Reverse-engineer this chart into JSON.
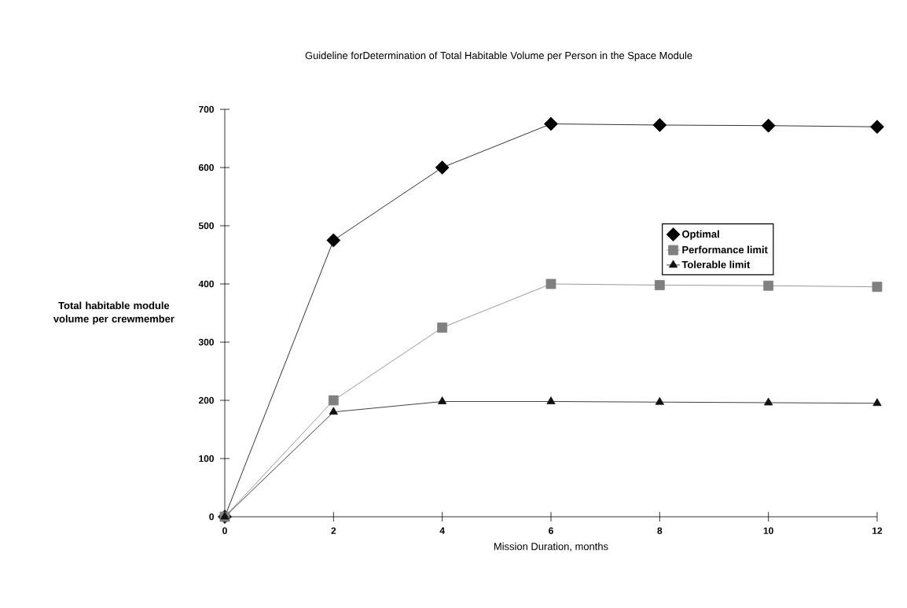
{
  "chart_data": {
    "type": "line",
    "title": "Guideline forDetermination of Total Habitable Volume per Person in the Space Module",
    "xlabel": "Mission Duration, months",
    "ylabel": "Total habitable module volume per crewmember",
    "x": [
      0,
      2,
      4,
      6,
      8,
      10,
      12
    ],
    "series": [
      {
        "name": "Optimal",
        "color": "#000000",
        "marker": "diamond",
        "values": [
          0,
          475,
          600,
          675,
          673,
          672,
          670
        ]
      },
      {
        "name": "Performance limit",
        "color": "#808080",
        "marker": "square",
        "values": [
          0,
          200,
          325,
          400,
          398,
          397,
          395
        ]
      },
      {
        "name": "Tolerable limit",
        "color": "#111111",
        "marker": "triangle",
        "values": [
          0,
          180,
          198,
          198,
          197,
          196,
          195
        ]
      }
    ],
    "xlim": [
      0,
      12
    ],
    "ylim": [
      0,
      700
    ],
    "xticks": [
      0,
      2,
      4,
      6,
      8,
      10,
      12
    ],
    "yticks": [
      0,
      100,
      200,
      300,
      400,
      500,
      600,
      700
    ],
    "grid": false,
    "legend": "right",
    "line_style": "solid"
  }
}
